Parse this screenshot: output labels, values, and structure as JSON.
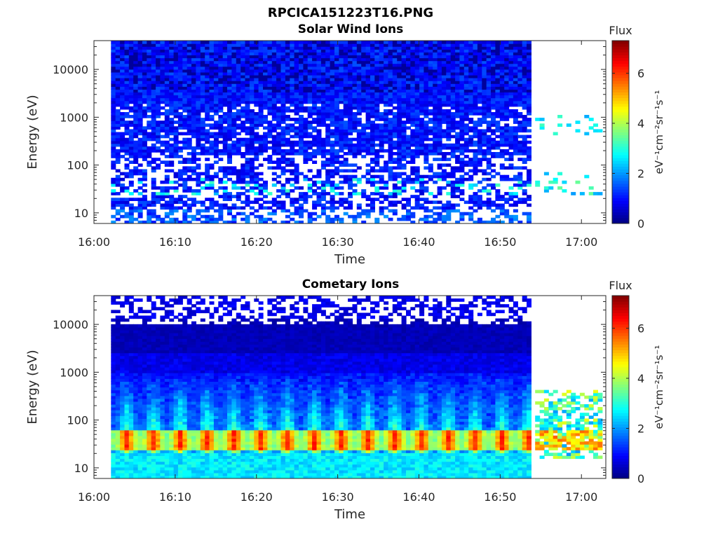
{
  "figure_title": "RPCICA151223T16.PNG",
  "colorbar": {
    "label_flux": "Flux",
    "unit_label": "eV⁻¹cm⁻²sr⁻¹s⁻¹",
    "ticks": [
      "0",
      "2",
      "4",
      "6"
    ],
    "range": [
      0,
      7.3
    ],
    "colormap": "jet"
  },
  "chart_data": [
    {
      "type": "heatmap",
      "title": "Solar Wind Ions",
      "xlabel": "Time",
      "ylabel": "Energy (eV)",
      "x_ticks": [
        "16:00",
        "16:10",
        "16:20",
        "16:30",
        "16:40",
        "16:50",
        "17:00"
      ],
      "x_range_minutes": [
        0,
        63
      ],
      "y_ticks": [
        "10",
        "100",
        "1000",
        "10000"
      ],
      "y_scale": "log",
      "y_range": [
        6,
        40000
      ],
      "data_interval_minutes": [
        2.1,
        53.3
      ],
      "sparse_interval_minutes": [
        54.3,
        62.5
      ],
      "low_energy_band_eV": [
        25,
        55
      ],
      "low_energy_band_level": 3.2,
      "background_level": 0.6
    },
    {
      "type": "heatmap",
      "title": "Cometary Ions",
      "xlabel": "Time",
      "ylabel": "Energy (eV)",
      "x_ticks": [
        "16:00",
        "16:10",
        "16:20",
        "16:30",
        "16:40",
        "16:50",
        "17:00"
      ],
      "x_range_minutes": [
        0,
        63
      ],
      "y_ticks": [
        "10",
        "100",
        "1000",
        "10000"
      ],
      "y_scale": "log",
      "y_range": [
        6,
        40000
      ],
      "data_interval_minutes": [
        2.1,
        53.3
      ],
      "sparse_interval_minutes": [
        54.3,
        62.5
      ],
      "peak_band_eV": [
        25,
        60
      ],
      "peak_level": 5.5,
      "pulse_period_minutes": 3.3,
      "background_level": 0.5
    }
  ]
}
